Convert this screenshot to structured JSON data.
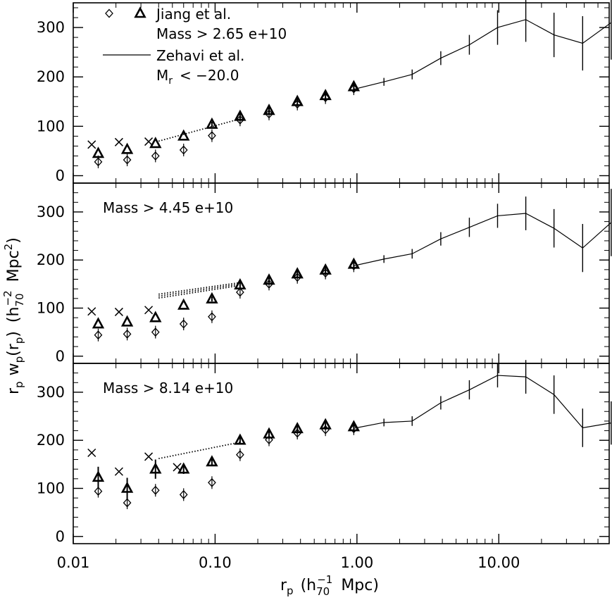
{
  "chart_data": {
    "type": "line",
    "x_scale": "log",
    "xlabel": {
      "main": "r",
      "sub": "p",
      "open": "(h",
      "hsub": "70",
      "hsup": "−1",
      "unit": "Mpc)"
    },
    "ylabel": {
      "text": "r_p w_p(r_p) (h_70^−2 Mpc^2)",
      "r": "r",
      "p": "p",
      "w": "w",
      "paren": "(r",
      "close": ")",
      "h": "(h",
      "hsub": "70",
      "hsup": "−2",
      "mpc": "Mpc",
      "msup": "2",
      "end": ")"
    },
    "xlim": [
      0.01,
      60
    ],
    "x_ticks": [
      {
        "value": 0.01,
        "label": "0.01"
      },
      {
        "value": 0.1,
        "label": "0.10"
      },
      {
        "value": 1,
        "label": "1.00"
      },
      {
        "value": 10,
        "label": "10.00"
      }
    ],
    "legend": {
      "jiang_name": "Jiang et al.",
      "jiang_cut": "Mass > 2.65 e+10",
      "zehavi_name": "Zehavi et al.",
      "zehavi_cut_base": "M",
      "zehavi_cut_sub": "r",
      "zehavi_cut_rest": "< −20.0"
    },
    "panels": [
      {
        "label": "Mass > 2.65 e+10",
        "ylim": [
          -15,
          350
        ],
        "yticks": [
          0,
          100,
          200,
          300
        ],
        "zehavi": {
          "x": [
            0.95,
            1.55,
            2.45,
            3.9,
            6.2,
            9.8,
            15.5,
            24.5,
            39,
            62
          ],
          "y": [
            175,
            190,
            205,
            238,
            265,
            300,
            316,
            285,
            268,
            310
          ],
          "err": [
            7,
            8,
            10,
            14,
            20,
            35,
            45,
            45,
            55,
            75
          ]
        },
        "dotted": [
          {
            "x": [
              0.04,
              0.15
            ],
            "y": [
              70,
              115
            ]
          }
        ],
        "triangles": {
          "x": [
            0.015,
            0.024,
            0.038,
            0.06,
            0.095,
            0.15,
            0.24,
            0.38,
            0.6,
            0.95
          ],
          "y": [
            45,
            53,
            65,
            80,
            104,
            120,
            132,
            150,
            162,
            180
          ],
          "err": [
            0,
            0,
            0,
            0,
            5,
            8,
            8,
            8,
            10,
            10
          ]
        },
        "diamonds": {
          "x": [
            0.015,
            0.024,
            0.038,
            0.06,
            0.095,
            0.15,
            0.24,
            0.38,
            0.6,
            0.95
          ],
          "y": [
            28,
            32,
            40,
            52,
            81,
            113,
            125,
            145,
            158,
            176
          ]
        },
        "crosses": {
          "x": [
            0.0135,
            0.021,
            0.034
          ],
          "y": [
            63,
            68,
            69
          ]
        }
      },
      {
        "label": "Mass > 4.45 e+10",
        "ylim": [
          -15,
          360
        ],
        "yticks": [
          0,
          100,
          200,
          300
        ],
        "zehavi": {
          "x": [
            0.95,
            1.55,
            2.45,
            3.9,
            6.2,
            9.8,
            15.5,
            24.5,
            39,
            62
          ],
          "y": [
            188,
            202,
            213,
            244,
            268,
            292,
            297,
            266,
            225,
            278
          ],
          "err": [
            7,
            8,
            10,
            14,
            20,
            25,
            35,
            40,
            50,
            70
          ]
        },
        "dotted": [
          {
            "x": [
              0.04,
              0.15
            ],
            "y": [
              121,
              147
            ]
          },
          {
            "x": [
              0.04,
              0.15
            ],
            "y": [
              125,
              150
            ]
          },
          {
            "x": [
              0.04,
              0.15
            ],
            "y": [
              129,
              153
            ]
          }
        ],
        "triangles": {
          "x": [
            0.015,
            0.024,
            0.038,
            0.06,
            0.095,
            0.15,
            0.24,
            0.38,
            0.6,
            0.95
          ],
          "y": [
            67,
            71,
            80,
            106,
            119,
            148,
            158,
            171,
            179,
            191
          ],
          "err": [
            0,
            0,
            0,
            0,
            5,
            6,
            6,
            8,
            10,
            8
          ]
        },
        "diamonds": {
          "x": [
            0.015,
            0.024,
            0.038,
            0.06,
            0.095,
            0.15,
            0.24,
            0.38,
            0.6,
            0.95
          ],
          "y": [
            44,
            46,
            50,
            67,
            82,
            133,
            150,
            164,
            173,
            188
          ]
        },
        "crosses": {
          "x": [
            0.0135,
            0.021,
            0.034
          ],
          "y": [
            93,
            92,
            96
          ]
        }
      },
      {
        "label": "Mass > 8.14 e+10",
        "ylim": [
          -15,
          360
        ],
        "yticks": [
          0,
          100,
          200,
          300
        ],
        "zehavi": {
          "x": [
            0.95,
            1.55,
            2.45,
            3.9,
            6.2,
            9.8,
            15.5,
            24.5,
            39,
            62
          ],
          "y": [
            225,
            237,
            240,
            278,
            305,
            335,
            332,
            295,
            226,
            236
          ],
          "err": [
            8,
            8,
            10,
            14,
            20,
            25,
            35,
            40,
            40,
            45
          ]
        },
        "dotted": [
          {
            "x": [
              0.04,
              0.15
            ],
            "y": [
              162,
              196
            ]
          }
        ],
        "triangles": {
          "x": [
            0.015,
            0.024,
            0.038,
            0.06,
            0.095,
            0.15,
            0.24,
            0.38,
            0.6,
            0.95
          ],
          "y": [
            123,
            100,
            140,
            140,
            155,
            200,
            213,
            224,
            232,
            228
          ],
          "err": [
            22,
            22,
            20,
            10,
            8,
            8,
            10,
            10,
            10,
            10
          ]
        },
        "diamonds": {
          "x": [
            0.015,
            0.024,
            0.038,
            0.06,
            0.095,
            0.15,
            0.24,
            0.38,
            0.6,
            0.95
          ],
          "y": [
            94,
            70,
            96,
            87,
            112,
            170,
            201,
            215,
            222,
            224
          ]
        },
        "crosses": {
          "x": [
            0.0135,
            0.021,
            0.034,
            0.054
          ],
          "y": [
            174,
            135,
            166,
            144
          ]
        }
      }
    ]
  }
}
